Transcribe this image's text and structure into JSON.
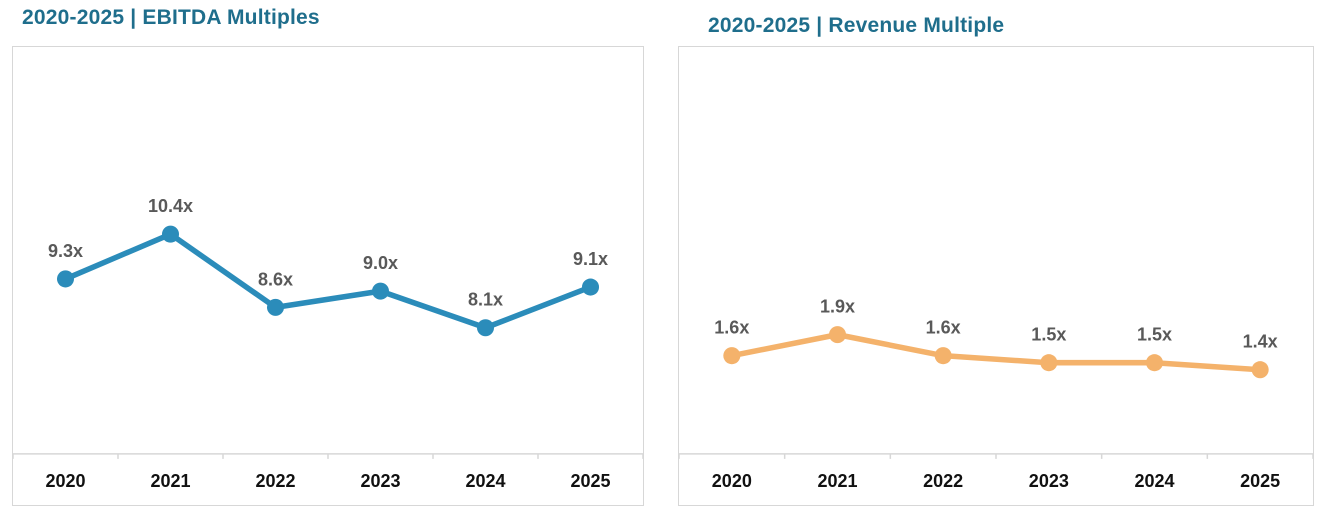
{
  "chart_data": [
    {
      "type": "line",
      "title": "2020-2025 | EBITDA Multiples",
      "categories": [
        "2020",
        "2021",
        "2022",
        "2023",
        "2024",
        "2025"
      ],
      "values": [
        9.3,
        10.4,
        8.6,
        9.0,
        8.1,
        9.1
      ],
      "point_labels": [
        "9.3x",
        "10.4x",
        "8.6x",
        "9.0x",
        "8.1x",
        "9.1x"
      ],
      "xlabel": "",
      "ylabel": "",
      "ylim": [
        5,
        15
      ],
      "grid": false,
      "legend": "none",
      "marker": "circle",
      "colors": {
        "line": "#2B8CBA",
        "marker": "#2B8CBA",
        "point_label": "#595959",
        "axis_label": "#111111",
        "axis_line": "#D7D7D7",
        "title": "#1F6E8C"
      }
    },
    {
      "type": "line",
      "title": "2020-2025 | Revenue Multiple",
      "categories": [
        "2020",
        "2021",
        "2022",
        "2023",
        "2024",
        "2025"
      ],
      "values": [
        1.6,
        1.9,
        1.6,
        1.5,
        1.5,
        1.4
      ],
      "point_labels": [
        "1.6x",
        "1.9x",
        "1.6x",
        "1.5x",
        "1.5x",
        "1.4x"
      ],
      "xlabel": "",
      "ylabel": "",
      "ylim": [
        0.2,
        6
      ],
      "grid": false,
      "legend": "none",
      "marker": "circle",
      "colors": {
        "line": "#F4B26B",
        "marker": "#F4B26B",
        "point_label": "#595959",
        "axis_label": "#111111",
        "axis_line": "#D7D7D7",
        "title": "#1F6E8C"
      }
    }
  ]
}
